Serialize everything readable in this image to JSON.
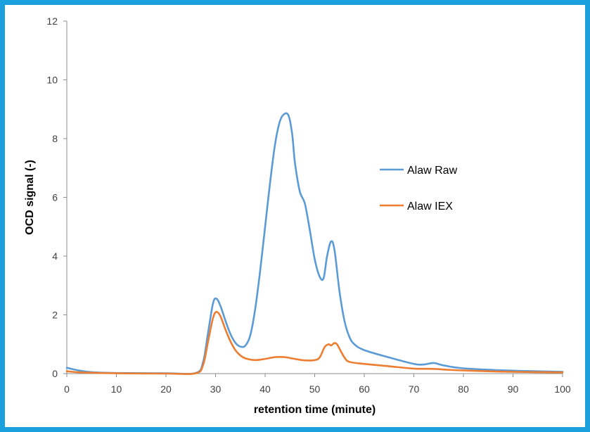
{
  "chart_data": {
    "type": "line",
    "xlabel": "retention time (minute)",
    "ylabel": "OCD signal (-)",
    "xlim": [
      0,
      100
    ],
    "ylim": [
      0,
      12
    ],
    "xticks": [
      "0",
      "10",
      "20",
      "30",
      "40",
      "50",
      "60",
      "70",
      "80",
      "90",
      "100"
    ],
    "yticks": [
      "0",
      "2",
      "4",
      "6",
      "8",
      "10",
      "12"
    ],
    "grid": false,
    "legend_position": "right",
    "series": [
      {
        "name": "Alaw Raw",
        "color": "#5b9bd5",
        "points": [
          [
            0,
            0.2
          ],
          [
            2,
            0.12
          ],
          [
            5,
            0.05
          ],
          [
            10,
            0.02
          ],
          [
            20,
            0.01
          ],
          [
            26,
            0.02
          ],
          [
            27.5,
            0.4
          ],
          [
            28.5,
            1.4
          ],
          [
            29.5,
            2.4
          ],
          [
            30.2,
            2.55
          ],
          [
            31,
            2.3
          ],
          [
            32,
            1.8
          ],
          [
            33,
            1.35
          ],
          [
            34,
            1.05
          ],
          [
            35,
            0.92
          ],
          [
            36,
            0.95
          ],
          [
            37,
            1.3
          ],
          [
            38,
            2.2
          ],
          [
            39,
            3.5
          ],
          [
            40,
            5.0
          ],
          [
            41,
            6.5
          ],
          [
            42,
            7.8
          ],
          [
            43,
            8.6
          ],
          [
            44,
            8.85
          ],
          [
            44.8,
            8.75
          ],
          [
            45.5,
            8.1
          ],
          [
            46,
            7.2
          ],
          [
            47,
            6.2
          ],
          [
            48,
            5.8
          ],
          [
            49,
            4.9
          ],
          [
            50,
            3.9
          ],
          [
            51,
            3.3
          ],
          [
            51.8,
            3.25
          ],
          [
            52.5,
            4.0
          ],
          [
            53.3,
            4.5
          ],
          [
            54,
            4.2
          ],
          [
            55,
            2.8
          ],
          [
            56,
            1.8
          ],
          [
            57,
            1.25
          ],
          [
            58,
            1.0
          ],
          [
            60,
            0.8
          ],
          [
            65,
            0.55
          ],
          [
            70,
            0.33
          ],
          [
            72,
            0.31
          ],
          [
            74,
            0.36
          ],
          [
            76,
            0.28
          ],
          [
            80,
            0.18
          ],
          [
            90,
            0.1
          ],
          [
            100,
            0.06
          ]
        ]
      },
      {
        "name": "Alaw IEX",
        "color": "#ed7d31",
        "points": [
          [
            0,
            0.08
          ],
          [
            3,
            0.04
          ],
          [
            10,
            0.01
          ],
          [
            20,
            0.0
          ],
          [
            26,
            0.01
          ],
          [
            27.5,
            0.3
          ],
          [
            28.5,
            1.1
          ],
          [
            29.5,
            1.9
          ],
          [
            30.2,
            2.1
          ],
          [
            31,
            1.95
          ],
          [
            32,
            1.5
          ],
          [
            33,
            1.1
          ],
          [
            34,
            0.8
          ],
          [
            35,
            0.62
          ],
          [
            36,
            0.52
          ],
          [
            38,
            0.46
          ],
          [
            40,
            0.5
          ],
          [
            42,
            0.56
          ],
          [
            44,
            0.56
          ],
          [
            46,
            0.5
          ],
          [
            48,
            0.45
          ],
          [
            50,
            0.46
          ],
          [
            51,
            0.55
          ],
          [
            52,
            0.9
          ],
          [
            52.8,
            1.0
          ],
          [
            53.3,
            0.96
          ],
          [
            54,
            1.04
          ],
          [
            54.5,
            1.0
          ],
          [
            55,
            0.85
          ],
          [
            56,
            0.55
          ],
          [
            57,
            0.4
          ],
          [
            60,
            0.33
          ],
          [
            65,
            0.25
          ],
          [
            70,
            0.17
          ],
          [
            74,
            0.16
          ],
          [
            78,
            0.12
          ],
          [
            85,
            0.08
          ],
          [
            90,
            0.06
          ],
          [
            100,
            0.04
          ]
        ]
      }
    ]
  }
}
